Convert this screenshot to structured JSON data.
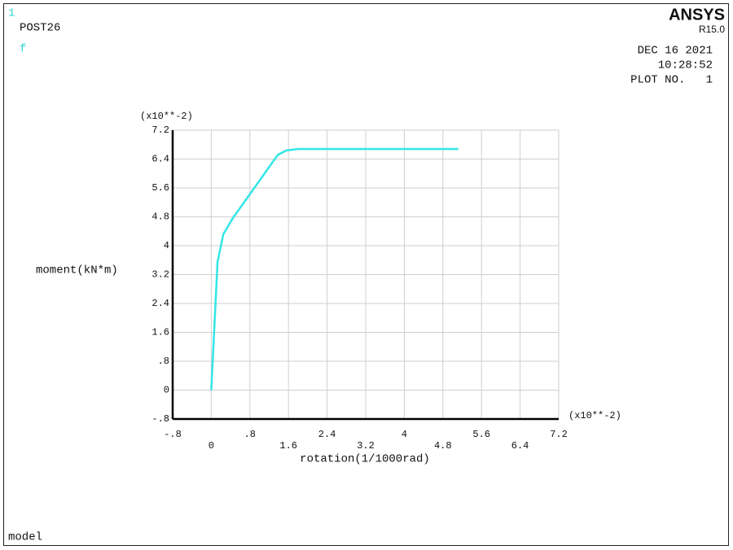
{
  "chart_data": {
    "type": "line",
    "window_number": "1",
    "processor": "POST26",
    "curve_label": "f",
    "brand": "ANSYS",
    "version": "R15.0",
    "date": "DEC 16 2021",
    "time": "10:28:52",
    "plot_number": "PLOT NO.   1",
    "footer": "model",
    "ylabel": "moment(kN*m)",
    "xlabel": "rotation(1/1000rad)",
    "y_multiplier": "(x10**-2)",
    "x_multiplier": "(x10**-2)",
    "x": [
      0,
      0.13,
      0.25,
      0.45,
      1.38,
      1.56,
      1.8,
      5.12
    ],
    "values": [
      0,
      3.55,
      4.32,
      4.77,
      6.52,
      6.64,
      6.68,
      6.68
    ],
    "color": "#33e6e6",
    "xlim": [
      -0.8,
      7.2
    ],
    "ylim": [
      -0.8,
      7.2
    ],
    "xticks": [
      {
        "value": -0.8,
        "label": "-.8"
      },
      0,
      {
        "value": 0.8,
        "label": ".8"
      },
      1.6,
      2.4,
      3.2,
      4,
      4.8,
      5.6,
      6.4,
      7.2
    ],
    "yticks": [
      {
        "value": -0.8,
        "label": "-.8"
      },
      0,
      {
        "value": 0.8,
        "label": ".8"
      },
      1.6,
      2.4,
      3.2,
      4,
      4.8,
      5.6,
      6.4,
      7.2
    ],
    "grid": true
  }
}
